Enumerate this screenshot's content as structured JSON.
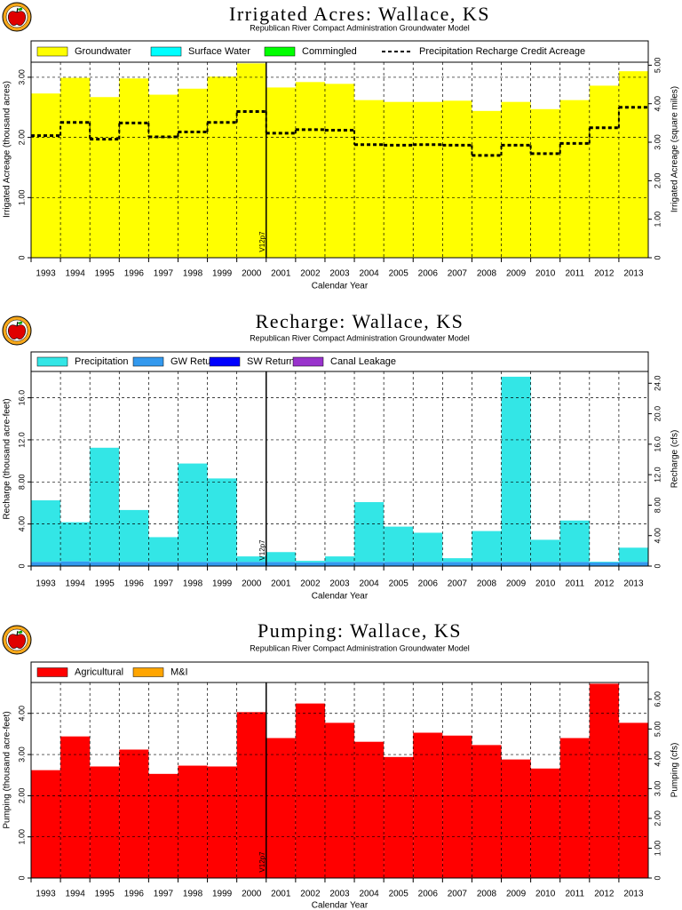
{
  "chart_data": [
    {
      "type": "bar",
      "stacked": true,
      "grid": true,
      "title": "Irrigated Acres: Wallace, KS",
      "subtitle": "Republican River Compact Administration Groundwater Model",
      "xlabel": "Calendar Year",
      "ylabel": "Irrigated Acreage (thousand acres)",
      "y2label": "Irrigated Acreage (square miles)",
      "annotation": "V12p7",
      "categories": [
        "1993",
        "1994",
        "1995",
        "1996",
        "1997",
        "1998",
        "1999",
        "2000",
        "2001",
        "2002",
        "2003",
        "2004",
        "2005",
        "2006",
        "2007",
        "2008",
        "2009",
        "2010",
        "2011",
        "2012",
        "2013"
      ],
      "series": [
        {
          "name": "Groundwater",
          "color": "#ffff00",
          "values": [
            2.73,
            2.99,
            2.67,
            2.98,
            2.71,
            2.81,
            3.01,
            3.23,
            2.83,
            2.92,
            2.89,
            2.62,
            2.59,
            2.59,
            2.61,
            2.44,
            2.59,
            2.47,
            2.62,
            2.86,
            3.1
          ]
        },
        {
          "name": "Surface Water",
          "color": "#00ffff",
          "values": [
            0,
            0,
            0,
            0,
            0,
            0,
            0,
            0,
            0,
            0,
            0,
            0,
            0,
            0,
            0,
            0,
            0,
            0,
            0,
            0,
            0
          ]
        },
        {
          "name": "Commingled",
          "color": "#00ff00",
          "values": [
            0,
            0,
            0,
            0,
            0,
            0,
            0,
            0,
            0,
            0,
            0,
            0,
            0,
            0,
            0,
            0,
            0,
            0,
            0,
            0,
            0
          ]
        },
        {
          "name": "Precipitation Recharge Credit Acreage",
          "type": "line",
          "dashed": true,
          "color": "#000000",
          "values": [
            2.03,
            2.25,
            1.97,
            2.24,
            2.01,
            2.09,
            2.25,
            2.43,
            2.07,
            2.13,
            2.12,
            1.88,
            1.87,
            1.88,
            1.87,
            1.7,
            1.87,
            1.73,
            1.9,
            2.16,
            2.5
          ]
        }
      ],
      "ylim": [
        0,
        3.25
      ],
      "yticks": [
        0,
        {
          "value": 1,
          "label": "1.00"
        },
        {
          "value": 2,
          "label": "2.00"
        },
        {
          "value": 3,
          "label": "3.00"
        }
      ],
      "y2lim": [
        0,
        5.078
      ],
      "y2ticks": [
        0,
        {
          "value": 1,
          "label": "1.00"
        },
        {
          "value": 2,
          "label": "2.00"
        },
        {
          "value": 3,
          "label": "3.00"
        },
        {
          "value": 4,
          "label": "4.00"
        },
        {
          "value": 5,
          "label": "5.00"
        }
      ]
    },
    {
      "type": "bar",
      "stacked": true,
      "grid": true,
      "title": "Recharge: Wallace, KS",
      "subtitle": "Republican River Compact Administration Groundwater Model",
      "xlabel": "Calendar Year",
      "ylabel": "Recharge (thousand acre-feet)",
      "y2label": "Recharge (cfs)",
      "annotation": "V12p7",
      "categories": [
        "1993",
        "1994",
        "1995",
        "1996",
        "1997",
        "1998",
        "1999",
        "2000",
        "2001",
        "2002",
        "2003",
        "2004",
        "2005",
        "2006",
        "2007",
        "2008",
        "2009",
        "2010",
        "2011",
        "2012",
        "2013"
      ],
      "series": [
        {
          "name": "GW Returns",
          "color": "#3399ee",
          "values": [
            0.4,
            0.45,
            0.4,
            0.4,
            0.4,
            0.4,
            0.4,
            0.4,
            0.4,
            0.35,
            0.4,
            0.4,
            0.4,
            0.4,
            0.4,
            0.4,
            0.4,
            0.4,
            0.4,
            0.35,
            0.4
          ]
        },
        {
          "name": "Precipitation",
          "color": "#33e6e6",
          "values": [
            5.85,
            3.72,
            10.85,
            4.93,
            2.35,
            9.35,
            7.93,
            0.52,
            0.93,
            0.15,
            0.52,
            5.68,
            3.35,
            2.77,
            0.35,
            2.93,
            17.6,
            2.1,
            3.93,
            0.07,
            1.35
          ]
        },
        {
          "name": "SW Returns",
          "color": "#0000ff",
          "values": [
            0,
            0,
            0,
            0,
            0,
            0,
            0,
            0,
            0,
            0,
            0,
            0,
            0,
            0,
            0,
            0,
            0,
            0,
            0,
            0,
            0
          ]
        },
        {
          "name": "Canal Leakage",
          "color": "#9933cc",
          "values": [
            0,
            0,
            0,
            0,
            0,
            0,
            0,
            0,
            0,
            0,
            0,
            0,
            0,
            0,
            0,
            0,
            0,
            0,
            0,
            0,
            0
          ]
        }
      ],
      "legend_order": [
        "Precipitation",
        "GW Returns",
        "SW Returns",
        "Canal Leakage"
      ],
      "ylim": [
        0,
        18.5
      ],
      "yticks": [
        0,
        {
          "value": 4,
          "label": "4.00"
        },
        {
          "value": 8,
          "label": "8.00"
        },
        {
          "value": 12,
          "label": "12.0"
        },
        {
          "value": 16,
          "label": "16.0"
        }
      ],
      "y2lim": [
        0,
        25.55
      ],
      "y2ticks": [
        0,
        {
          "value": 4,
          "label": "4.00"
        },
        {
          "value": 8,
          "label": "8.00"
        },
        {
          "value": 12,
          "label": "12.0"
        },
        {
          "value": 16,
          "label": "16.0"
        },
        {
          "value": 20,
          "label": "20.0"
        },
        {
          "value": 24,
          "label": "24.0"
        }
      ]
    },
    {
      "type": "bar",
      "stacked": true,
      "grid": true,
      "title": "Pumping: Wallace, KS",
      "subtitle": "Republican River Compact Administration Groundwater Model",
      "xlabel": "Calendar Year",
      "ylabel": "Pumping (thousand acre-feet)",
      "y2label": "Pumping (cfs)",
      "annotation": "V12p7",
      "categories": [
        "1993",
        "1994",
        "1995",
        "1996",
        "1997",
        "1998",
        "1999",
        "2000",
        "2001",
        "2002",
        "2003",
        "2004",
        "2005",
        "2006",
        "2007",
        "2008",
        "2009",
        "2010",
        "2011",
        "2012",
        "2013"
      ],
      "series": [
        {
          "name": "Agricultural",
          "color": "#ff0000",
          "values": [
            2.62,
            3.44,
            2.71,
            3.12,
            2.53,
            2.73,
            2.71,
            4.03,
            3.4,
            4.24,
            3.77,
            3.31,
            2.94,
            3.53,
            3.46,
            3.23,
            2.88,
            2.66,
            3.4,
            4.72,
            3.77
          ]
        },
        {
          "name": "M&I",
          "color": "#ffa500",
          "values": [
            0,
            0,
            0,
            0,
            0,
            0,
            0,
            0,
            0,
            0,
            0,
            0,
            0,
            0,
            0,
            0,
            0,
            0,
            0,
            0,
            0
          ]
        }
      ],
      "ylim": [
        0,
        4.75
      ],
      "yticks": [
        0,
        {
          "value": 1,
          "label": "1.00"
        },
        {
          "value": 2,
          "label": "2.00"
        },
        {
          "value": 3,
          "label": "3.00"
        },
        {
          "value": 4,
          "label": "4.00"
        }
      ],
      "y2lim": [
        0,
        6.56
      ],
      "y2ticks": [
        0,
        {
          "value": 1,
          "label": "1.00"
        },
        {
          "value": 2,
          "label": "2.00"
        },
        {
          "value": 3,
          "label": "3.00"
        },
        {
          "value": 4,
          "label": "4.00"
        },
        {
          "value": 5,
          "label": "5.00"
        },
        {
          "value": 6,
          "label": "6.00"
        }
      ]
    }
  ]
}
